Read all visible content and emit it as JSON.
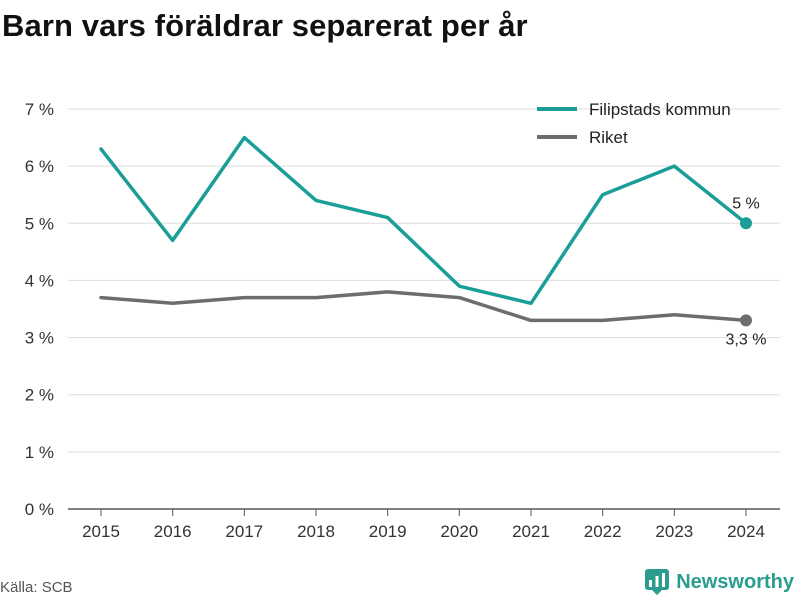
{
  "title": "Barn vars föräldrar separerat per år",
  "source": "Källa: SCB",
  "brand": {
    "name": "Newsworthy",
    "icon": "newsworthy-logo-icon"
  },
  "colors": {
    "filipstad": "#1a9e97",
    "riket": "#6d6d6f",
    "grid": "#dddddd",
    "axis": "#555555"
  },
  "chart_data": {
    "type": "line",
    "title": "Barn vars föräldrar separerat per år",
    "x": [
      "2015",
      "2016",
      "2017",
      "2018",
      "2019",
      "2020",
      "2021",
      "2022",
      "2023",
      "2024"
    ],
    "ylim": [
      0,
      7
    ],
    "yticks": [
      0,
      1,
      2,
      3,
      4,
      5,
      6,
      7
    ],
    "ytick_labels": [
      "0 %",
      "1 %",
      "2 %",
      "3 %",
      "4 %",
      "5 %",
      "6 %",
      "7 %"
    ],
    "grid": true,
    "legend_position": "top-right",
    "series": [
      {
        "name": "Filipstads kommun",
        "values": [
          6.3,
          4.7,
          6.5,
          5.4,
          5.1,
          3.9,
          3.6,
          5.5,
          6.0,
          5.0
        ],
        "end_label": "5 %"
      },
      {
        "name": "Riket",
        "values": [
          3.7,
          3.6,
          3.7,
          3.7,
          3.8,
          3.7,
          3.3,
          3.3,
          3.4,
          3.3
        ],
        "end_label": "3,3 %"
      }
    ]
  }
}
